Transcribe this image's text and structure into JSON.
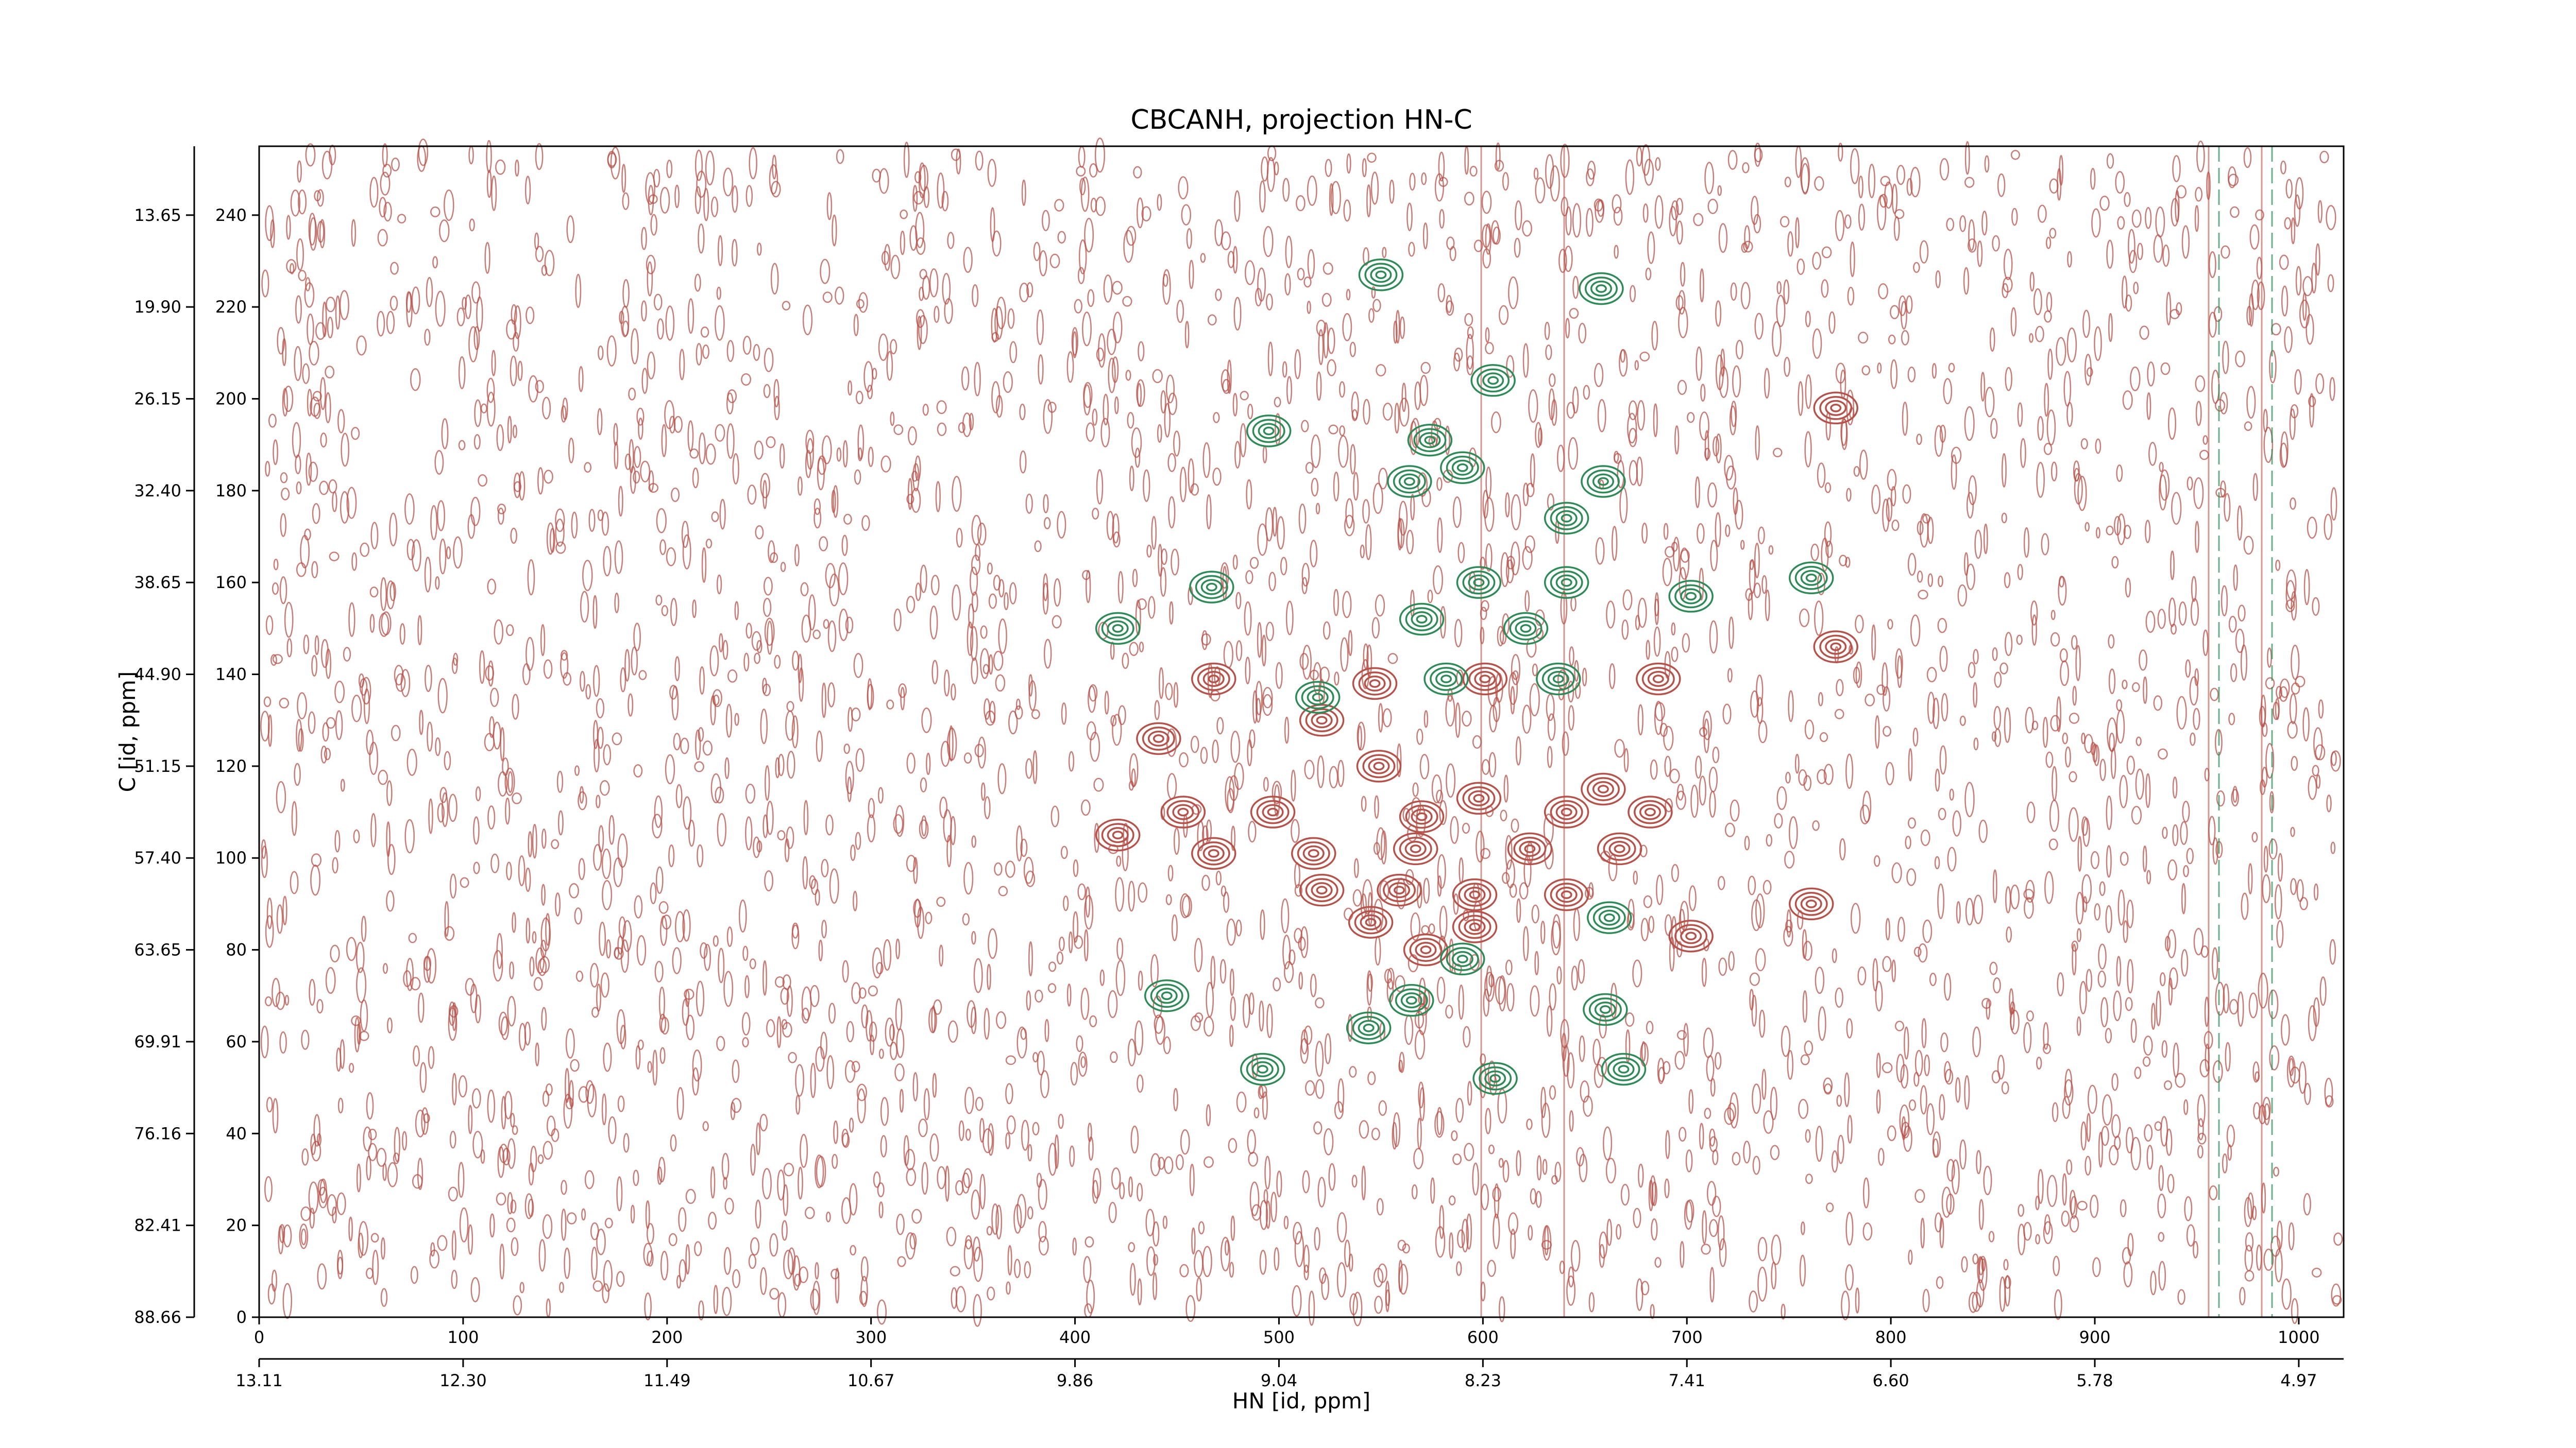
{
  "chart_data": {
    "type": "contour",
    "title": "CBCANH, projection HN-C",
    "xlabel": "HN [id, ppm]",
    "ylabel": "C [id, ppm]",
    "xlim": [
      0,
      1022
    ],
    "ylim": [
      0,
      255
    ],
    "xticks": [
      0,
      100,
      200,
      300,
      400,
      500,
      600,
      700,
      800,
      900,
      1000
    ],
    "yticks": [
      0,
      20,
      40,
      60,
      80,
      100,
      120,
      140,
      160,
      180,
      200,
      220,
      240
    ],
    "x2ticks": [
      {
        "value": 0,
        "label": "13.11"
      },
      {
        "value": 100,
        "label": "12.30"
      },
      {
        "value": 200,
        "label": "11.49"
      },
      {
        "value": 300,
        "label": "10.67"
      },
      {
        "value": 400,
        "label": "9.86"
      },
      {
        "value": 500,
        "label": "9.04"
      },
      {
        "value": 600,
        "label": "8.23"
      },
      {
        "value": 700,
        "label": "7.41"
      },
      {
        "value": 800,
        "label": "6.60"
      },
      {
        "value": 900,
        "label": "5.78"
      },
      {
        "value": 1000,
        "label": "4.97"
      }
    ],
    "y2ticks": [
      {
        "value": 0,
        "label": "88.66"
      },
      {
        "value": 20,
        "label": "82.41"
      },
      {
        "value": 40,
        "label": "76.16"
      },
      {
        "value": 60,
        "label": "69.91"
      },
      {
        "value": 80,
        "label": "63.65"
      },
      {
        "value": 100,
        "label": "57.40"
      },
      {
        "value": 120,
        "label": "51.15"
      },
      {
        "value": 140,
        "label": "44.90"
      },
      {
        "value": 160,
        "label": "38.65"
      },
      {
        "value": 180,
        "label": "32.40"
      },
      {
        "value": 200,
        "label": "26.15"
      },
      {
        "value": 220,
        "label": "19.90"
      },
      {
        "value": 240,
        "label": "13.65"
      }
    ],
    "series": [
      {
        "color": "#b5524a",
        "x": [
          773,
          773,
          468,
          547,
          601,
          686,
          521,
          441,
          549,
          598,
          659,
          421,
          453,
          497,
          570,
          641,
          682,
          468,
          517,
          567,
          623,
          667,
          521,
          559,
          596,
          641,
          761,
          545,
          596,
          702,
          572
        ],
        "y": [
          198,
          146,
          139,
          138,
          139,
          139,
          130,
          126,
          120,
          113,
          115,
          105,
          110,
          110,
          109,
          110,
          110,
          101,
          101,
          102,
          102,
          102,
          93,
          93,
          92,
          92,
          90,
          86,
          85,
          83,
          80
        ]
      },
      {
        "color": "#2e8b57",
        "x": [
          550,
          658,
          605,
          495,
          574,
          590,
          564,
          659,
          641,
          598,
          641,
          702,
          761,
          421,
          467,
          570,
          621,
          582,
          637,
          519,
          445,
          565,
          544,
          660,
          669,
          606,
          492,
          662,
          590
        ],
        "y": [
          227,
          224,
          204,
          193,
          191,
          185,
          182,
          182,
          174,
          160,
          160,
          157,
          161,
          150,
          159,
          152,
          150,
          139,
          139,
          135,
          70,
          69,
          63,
          67,
          54,
          52,
          54,
          87,
          78
        ]
      }
    ]
  }
}
